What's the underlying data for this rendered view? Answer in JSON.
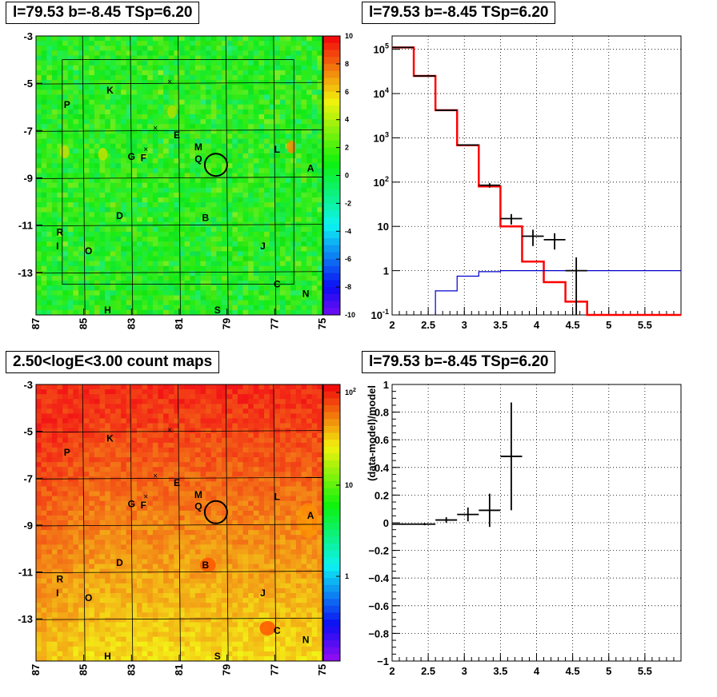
{
  "panels": {
    "tl": {
      "title": "l=79.53 b=-8.45 TSp=6.20"
    },
    "tr": {
      "title": "l=79.53 b=-8.45 TSp=6.20"
    },
    "bl": {
      "title": "2.50<logE<3.00 count maps"
    },
    "br": {
      "title": "l=79.53 b=-8.45 TSp=6.20"
    }
  },
  "colors": {
    "model": "#ff0000",
    "background": "#0000cc",
    "data": "#000000",
    "circle": "#000000"
  },
  "chart_data": [
    {
      "id": "residual-map",
      "type": "heatmap",
      "title": "l=79.53 b=-8.45 TSp=6.20",
      "x_ticks": [
        "87",
        "85",
        "83",
        "81",
        "79",
        "77",
        "75"
      ],
      "y_ticks": [
        "-3",
        "-5",
        "-7",
        "-9",
        "-11",
        "-13"
      ],
      "xlim": [
        87,
        75
      ],
      "ylim": [
        -14.8,
        -3
      ],
      "colorbar_ticks": [
        "10",
        "8",
        "6",
        "4",
        "2",
        "0",
        "-2",
        "-4",
        "-6",
        "-8",
        "-10"
      ],
      "colorbar_range": [
        -10,
        10
      ],
      "grid": "on",
      "source_circle": {
        "l": 79.53,
        "b": -8.45
      },
      "sources": [
        {
          "label": "K",
          "l": 83.9,
          "b": -5.3
        },
        {
          "label": "P",
          "l": 85.7,
          "b": -5.9
        },
        {
          "label": "E",
          "l": 81.1,
          "b": -7.2
        },
        {
          "label": "M",
          "l": 80.2,
          "b": -7.7
        },
        {
          "label": "L",
          "l": 76.9,
          "b": -7.8
        },
        {
          "label": "G",
          "l": 83.0,
          "b": -8.1
        },
        {
          "label": "F",
          "l": 82.5,
          "b": -8.15
        },
        {
          "label": "Q",
          "l": 80.2,
          "b": -8.2
        },
        {
          "label": "A",
          "l": 75.5,
          "b": -8.6
        },
        {
          "label": "D",
          "l": 83.5,
          "b": -10.6
        },
        {
          "label": "B",
          "l": 79.9,
          "b": -10.7
        },
        {
          "label": "R",
          "l": 86.0,
          "b": -11.3
        },
        {
          "label": "J",
          "l": 77.5,
          "b": -11.9
        },
        {
          "label": "I",
          "l": 86.1,
          "b": -11.9
        },
        {
          "label": "O",
          "l": 84.8,
          "b": -12.1
        },
        {
          "label": "C",
          "l": 76.9,
          "b": -13.5
        },
        {
          "label": "N",
          "l": 75.7,
          "b": -13.9
        },
        {
          "label": "H",
          "l": 84.0,
          "b": -14.6
        },
        {
          "label": "S",
          "l": 79.4,
          "b": -14.6
        }
      ]
    },
    {
      "id": "spectrum",
      "type": "line",
      "title": "l=79.53 b=-8.45 TSp=6.20",
      "xlim": [
        2,
        6
      ],
      "ylim": [
        0.1,
        200000
      ],
      "yscale": "log",
      "x_ticks": [
        "2",
        "2.5",
        "3",
        "3.5",
        "4",
        "4.5",
        "5",
        "5.5"
      ],
      "y_ticks": [
        "10^-1",
        "1",
        "10",
        "10^2",
        "10^3",
        "10^4",
        "10^5"
      ],
      "grid": "on",
      "series": [
        {
          "kind": "model",
          "bin_edges": [
            2,
            2.3,
            2.6,
            2.9,
            3.2,
            3.5,
            3.8,
            4.1,
            4.4,
            4.7,
            6.0
          ],
          "values": [
            110000,
            25000,
            4200,
            680,
            80,
            10,
            1.6,
            0.55,
            0.2,
            0.1
          ]
        },
        {
          "kind": "background",
          "bin_edges": [
            2.6,
            2.9,
            3.2,
            3.5,
            3.8,
            4.1,
            4.4,
            4.7,
            6.0
          ],
          "values": [
            0.35,
            0.75,
            0.95,
            1.0,
            1.0,
            1.0,
            1.0,
            1.0
          ]
        },
        {
          "kind": "data",
          "x": [
            2.15,
            2.45,
            2.75,
            3.05,
            3.35,
            3.65,
            3.95,
            4.25,
            4.55
          ],
          "xerr": 0.15,
          "y": [
            110000,
            25000,
            4200,
            690,
            85,
            15,
            6,
            5,
            1.0
          ],
          "yerr_lo": [
            300,
            150,
            60,
            25,
            10,
            4,
            2.4,
            2,
            0.9
          ],
          "yerr_hi": [
            300,
            150,
            60,
            25,
            10,
            4,
            2.4,
            2,
            1.0
          ]
        }
      ]
    },
    {
      "id": "count-map",
      "type": "heatmap",
      "title": "2.50<logE<3.00 count maps",
      "x_ticks": [
        "87",
        "85",
        "83",
        "81",
        "79",
        "77",
        "75"
      ],
      "y_ticks": [
        "-3",
        "-5",
        "-7",
        "-9",
        "-11",
        "-13"
      ],
      "xlim": [
        87,
        75
      ],
      "ylim": [
        -14.8,
        -3
      ],
      "colorbar_ticks": [
        "10^2",
        "10",
        "1"
      ],
      "colorbar_scale": "log",
      "grid": "on",
      "source_circle": {
        "l": 79.53,
        "b": -8.45
      }
    },
    {
      "id": "residuals",
      "type": "scatter",
      "title": "l=79.53 b=-8.45 TSp=6.20",
      "xlim": [
        2,
        6
      ],
      "ylim": [
        -1,
        1
      ],
      "ylabel": "(data-model)/model",
      "x_ticks": [
        "2",
        "2.5",
        "3",
        "3.5",
        "4",
        "4.5",
        "5",
        "5.5"
      ],
      "y_ticks": [
        "1",
        "0.8",
        "0.6",
        "0.4",
        "0.2",
        "0",
        "-0.2",
        "-0.4",
        "-0.6",
        "-0.8",
        "-1"
      ],
      "grid": "on",
      "series": [
        {
          "x": [
            2.15,
            2.45,
            2.75,
            3.05,
            3.35,
            3.65
          ],
          "xerr": 0.15,
          "y": [
            -0.01,
            -0.01,
            0.02,
            0.06,
            0.09,
            0.48
          ],
          "yerr": [
            0.005,
            0.008,
            0.02,
            0.05,
            0.12,
            0.39
          ]
        }
      ]
    }
  ]
}
